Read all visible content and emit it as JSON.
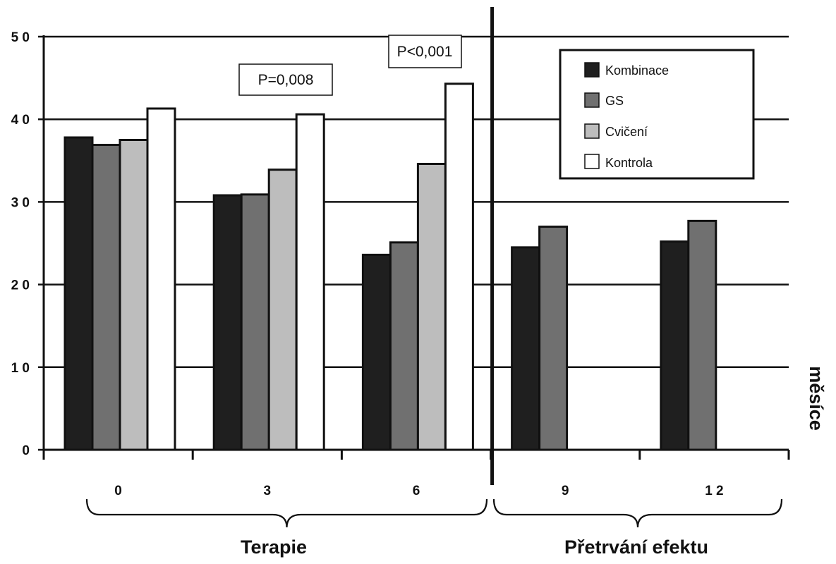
{
  "chart_data": {
    "type": "bar",
    "categories": [
      "0",
      "3",
      "6",
      "9",
      "1 2"
    ],
    "series": [
      {
        "name": "Kombinace",
        "values": [
          37.8,
          30.8,
          23.6,
          24.5,
          25.2
        ],
        "color": "#1f1f1f"
      },
      {
        "name": "GS",
        "values": [
          36.9,
          30.9,
          25.1,
          27.0,
          27.7
        ],
        "color": "#707070"
      },
      {
        "name": "Cvičení",
        "values": [
          37.5,
          33.9,
          34.6,
          null,
          null
        ],
        "color": "#bdbdbd"
      },
      {
        "name": "Kontrola",
        "values": [
          41.3,
          40.6,
          44.3,
          null,
          null
        ],
        "color": "#ffffff"
      }
    ],
    "ylim": [
      0,
      50
    ],
    "yticks": [
      "0",
      "1 0",
      "2 0",
      "3 0",
      "4 0",
      "5 0"
    ],
    "grid": true,
    "legend_position": "top-right",
    "annotations": [
      "P=0,008",
      "P<0,001"
    ],
    "groups": [
      {
        "label": "Terapie",
        "categories": [
          "0",
          "3",
          "6"
        ]
      },
      {
        "label": "Přetrvání efektu",
        "categories": [
          "9",
          "1 2"
        ]
      }
    ],
    "side_label": "měsíce"
  }
}
